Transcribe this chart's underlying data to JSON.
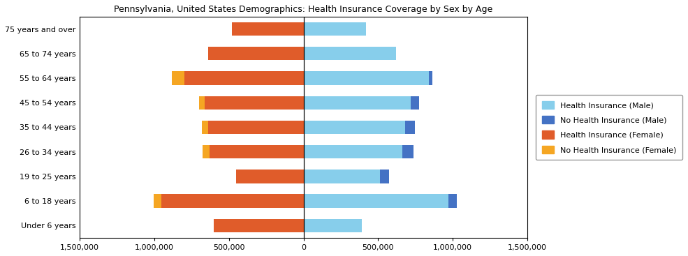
{
  "title": "Pennsylvania, United States Demographics: Health Insurance Coverage by Sex by Age",
  "age_groups": [
    "Under 6 years",
    "6 to 18 years",
    "19 to 25 years",
    "26 to 34 years",
    "35 to 44 years",
    "45 to 54 years",
    "55 to 64 years",
    "65 to 74 years",
    "75 years and over"
  ],
  "health_insurance_male": [
    390000,
    970000,
    510000,
    660000,
    680000,
    720000,
    840000,
    620000,
    420000
  ],
  "no_health_insurance_male": [
    0,
    55000,
    65000,
    75000,
    65000,
    55000,
    25000,
    0,
    0
  ],
  "health_insurance_female": [
    600000,
    950000,
    450000,
    630000,
    640000,
    660000,
    800000,
    640000,
    480000
  ],
  "no_health_insurance_female": [
    0,
    55000,
    0,
    45000,
    40000,
    40000,
    80000,
    0,
    0
  ],
  "colors": {
    "health_insurance_male": "#87CEEB",
    "no_health_insurance_male": "#4472C4",
    "health_insurance_female": "#E05C2A",
    "no_health_insurance_female": "#F5A623"
  },
  "xlim": [
    -1500000,
    1500000
  ],
  "xticks": [
    -1500000,
    -1000000,
    -500000,
    0,
    500000,
    1000000,
    1500000
  ],
  "xtick_labels": [
    "1,500,000",
    "1,000,000",
    "500,000",
    "0",
    "500,000",
    "1,000,000",
    "1,500,000"
  ],
  "legend_labels": [
    "Health Insurance (Male)",
    "No Health Insurance (Male)",
    "Health Insurance (Female)",
    "No Health Insurance (Female)"
  ],
  "bar_height": 0.55,
  "figsize": [
    9.85,
    3.67
  ],
  "dpi": 100
}
